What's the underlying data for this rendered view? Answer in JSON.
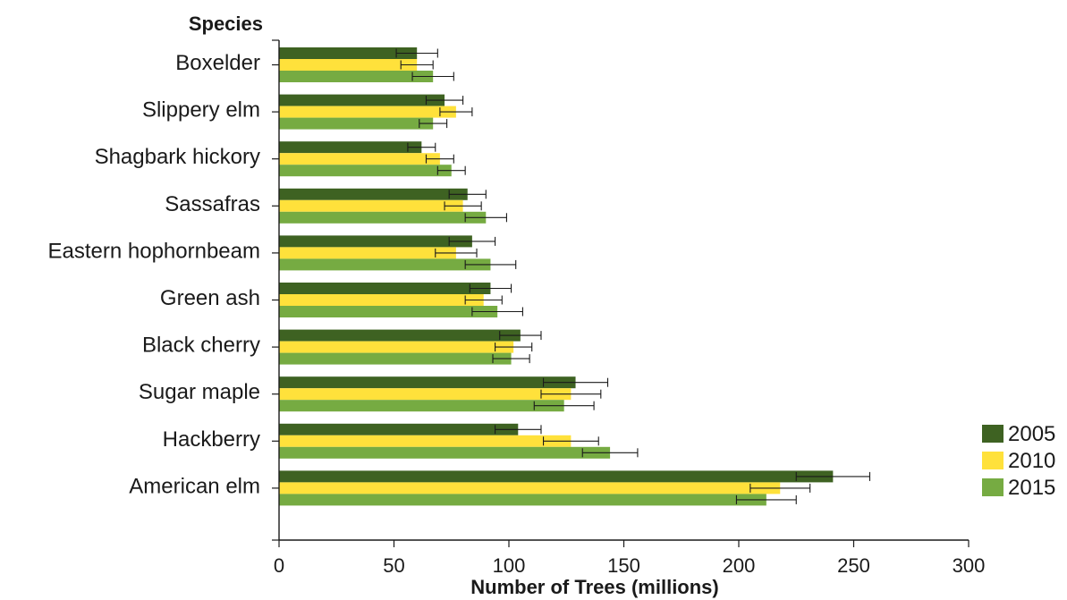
{
  "chart_data": {
    "type": "bar",
    "orientation": "horizontal",
    "ylabel": "Species",
    "xlabel": "Number of Trees (millions)",
    "xlim": [
      0,
      300
    ],
    "xticks": [
      "0",
      "50",
      "100",
      "150",
      "200",
      "250",
      "300"
    ],
    "categories": [
      "Boxelder",
      "Slippery elm",
      "Shagbark hickory",
      "Sassafras",
      "Eastern hophornbeam",
      "Green ash",
      "Black cherry",
      "Sugar maple",
      "Hackberry",
      "American elm"
    ],
    "series": [
      {
        "name": "2005",
        "color": "#3e6222",
        "values": [
          60,
          72,
          62,
          82,
          84,
          92,
          105,
          129,
          104,
          241
        ],
        "error": [
          9,
          8,
          6,
          8,
          10,
          9,
          9,
          14,
          10,
          16
        ]
      },
      {
        "name": "2010",
        "color": "#ffe13b",
        "values": [
          60,
          77,
          70,
          80,
          77,
          89,
          102,
          127,
          127,
          218
        ],
        "error": [
          7,
          7,
          6,
          8,
          9,
          8,
          8,
          13,
          12,
          13
        ]
      },
      {
        "name": "2015",
        "color": "#76ab42",
        "values": [
          67,
          67,
          75,
          90,
          92,
          95,
          101,
          124,
          144,
          212
        ],
        "error": [
          9,
          6,
          6,
          9,
          11,
          11,
          8,
          13,
          12,
          13
        ]
      }
    ],
    "legend": {
      "placement": "bottom-right"
    },
    "grid": false
  }
}
